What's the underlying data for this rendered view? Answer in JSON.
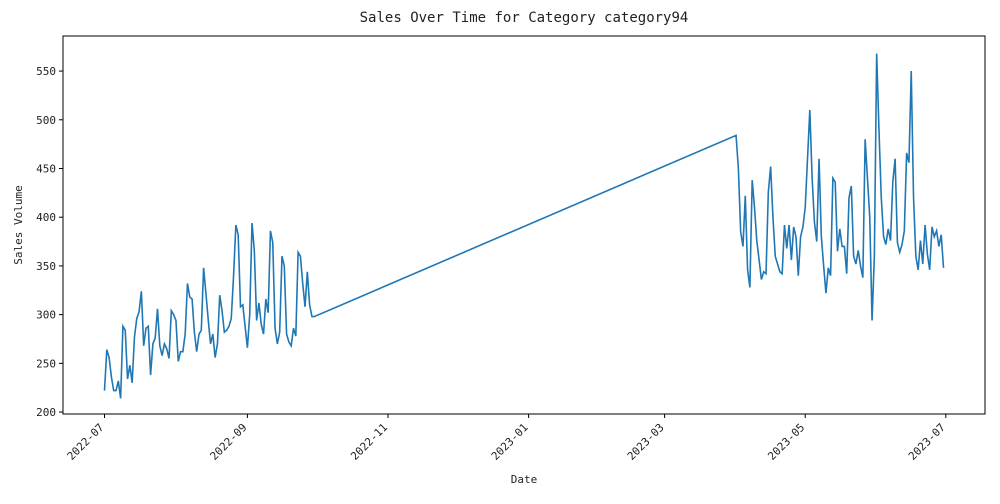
{
  "chart_data": {
    "type": "line",
    "title": "Sales Over Time for Category category94",
    "xlabel": "Date",
    "ylabel": "Sales Volume",
    "x": [
      "2022-07-01",
      "2022-07-02",
      "2022-07-03",
      "2022-07-04",
      "2022-07-05",
      "2022-07-06",
      "2022-07-07",
      "2022-07-08",
      "2022-07-09",
      "2022-07-10",
      "2022-07-11",
      "2022-07-12",
      "2022-07-13",
      "2022-07-14",
      "2022-07-15",
      "2022-07-16",
      "2022-07-17",
      "2022-07-18",
      "2022-07-19",
      "2022-07-20",
      "2022-07-21",
      "2022-07-22",
      "2022-07-23",
      "2022-07-24",
      "2022-07-25",
      "2022-07-26",
      "2022-07-27",
      "2022-07-28",
      "2022-07-29",
      "2022-07-30",
      "2022-07-31",
      "2022-08-01",
      "2022-08-02",
      "2022-08-03",
      "2022-08-04",
      "2022-08-05",
      "2022-08-06",
      "2022-08-07",
      "2022-08-08",
      "2022-08-09",
      "2022-08-10",
      "2022-08-11",
      "2022-08-12",
      "2022-08-13",
      "2022-08-14",
      "2022-08-15",
      "2022-08-16",
      "2022-08-17",
      "2022-08-18",
      "2022-08-19",
      "2022-08-20",
      "2022-08-21",
      "2022-08-22",
      "2022-08-23",
      "2022-08-24",
      "2022-08-25",
      "2022-08-26",
      "2022-08-27",
      "2022-08-28",
      "2022-08-29",
      "2022-08-30",
      "2022-08-31",
      "2022-09-01",
      "2022-09-02",
      "2022-09-03",
      "2022-09-04",
      "2022-09-05",
      "2022-09-06",
      "2022-09-07",
      "2022-09-08",
      "2022-09-09",
      "2022-09-10",
      "2022-09-11",
      "2022-09-12",
      "2022-09-13",
      "2022-09-14",
      "2022-09-15",
      "2022-09-16",
      "2022-09-17",
      "2022-09-18",
      "2022-09-19",
      "2022-09-20",
      "2022-09-21",
      "2022-09-22",
      "2022-09-23",
      "2022-09-24",
      "2022-09-25",
      "2022-09-26",
      "2022-09-27",
      "2022-09-28",
      "2022-09-29",
      "2022-09-30",
      "2023-04-01",
      "2023-04-02",
      "2023-04-03",
      "2023-04-04",
      "2023-04-05",
      "2023-04-06",
      "2023-04-07",
      "2023-04-08",
      "2023-04-09",
      "2023-04-10",
      "2023-04-11",
      "2023-04-12",
      "2023-04-13",
      "2023-04-14",
      "2023-04-15",
      "2023-04-16",
      "2023-04-17",
      "2023-04-18",
      "2023-04-19",
      "2023-04-20",
      "2023-04-21",
      "2023-04-22",
      "2023-04-23",
      "2023-04-24",
      "2023-04-25",
      "2023-04-26",
      "2023-04-27",
      "2023-04-28",
      "2023-04-29",
      "2023-04-30",
      "2023-05-01",
      "2023-05-02",
      "2023-05-03",
      "2023-05-04",
      "2023-05-05",
      "2023-05-06",
      "2023-05-07",
      "2023-05-08",
      "2023-05-09",
      "2023-05-10",
      "2023-05-11",
      "2023-05-12",
      "2023-05-13",
      "2023-05-14",
      "2023-05-15",
      "2023-05-16",
      "2023-05-17",
      "2023-05-18",
      "2023-05-19",
      "2023-05-20",
      "2023-05-21",
      "2023-05-22",
      "2023-05-23",
      "2023-05-24",
      "2023-05-25",
      "2023-05-26",
      "2023-05-27",
      "2023-05-28",
      "2023-05-29",
      "2023-05-30",
      "2023-05-31",
      "2023-06-01",
      "2023-06-02",
      "2023-06-03",
      "2023-06-04",
      "2023-06-05",
      "2023-06-06",
      "2023-06-07",
      "2023-06-08",
      "2023-06-09",
      "2023-06-10",
      "2023-06-11",
      "2023-06-12",
      "2023-06-13",
      "2023-06-14",
      "2023-06-15",
      "2023-06-16",
      "2023-06-17",
      "2023-06-18",
      "2023-06-19",
      "2023-06-20",
      "2023-06-21",
      "2023-06-22",
      "2023-06-23",
      "2023-06-24",
      "2023-06-25",
      "2023-06-26",
      "2023-06-27",
      "2023-06-28",
      "2023-06-29",
      "2023-06-30"
    ],
    "series": [
      {
        "color": "#1f77b4",
        "values": [
          222,
          264,
          256,
          236,
          222,
          222,
          232,
          214,
          288,
          284,
          234,
          248,
          230,
          277,
          296,
          303,
          324,
          268,
          286,
          288,
          238,
          270,
          276,
          306,
          268,
          258,
          270,
          265,
          255,
          304,
          300,
          294,
          252,
          262,
          262,
          280,
          332,
          318,
          316,
          282,
          262,
          280,
          284,
          348,
          322,
          295,
          270,
          280,
          256,
          270,
          320,
          304,
          282,
          284,
          288,
          296,
          340,
          392,
          382,
          308,
          310,
          288,
          266,
          300,
          394,
          366,
          294,
          312,
          290,
          280,
          316,
          302,
          386,
          374,
          286,
          270,
          282,
          360,
          350,
          280,
          272,
          268,
          286,
          278,
          364,
          360,
          332,
          308,
          344,
          310,
          298,
          298,
          484,
          450,
          385,
          370,
          422,
          346,
          328,
          438,
          410,
          376,
          356,
          336,
          344,
          342,
          426,
          452,
          400,
          360,
          352,
          344,
          342,
          392,
          368,
          392,
          356,
          390,
          380,
          340,
          380,
          390,
          410,
          460,
          510,
          440,
          395,
          375,
          460,
          380,
          350,
          322,
          348,
          340,
          440,
          436,
          365,
          388,
          370,
          370,
          342,
          420,
          432,
          360,
          352,
          366,
          350,
          338,
          480,
          440,
          400,
          294,
          360,
          568,
          490,
          420,
          380,
          372,
          388,
          376,
          436,
          460,
          374,
          364,
          372,
          386,
          466,
          456,
          550,
          420,
          360,
          346,
          376,
          352,
          392,
          362,
          346,
          390,
          380,
          386,
          370,
          382,
          348
        ]
      }
    ],
    "xlim": [
      "2022-06-13",
      "2023-07-18"
    ],
    "xticks": [
      "2022-07",
      "2022-09",
      "2022-11",
      "2023-01",
      "2023-03",
      "2023-05",
      "2023-07"
    ],
    "ylim": [
      198,
      586
    ],
    "yticks": [
      200,
      250,
      300,
      350,
      400,
      450,
      500,
      550
    ]
  }
}
